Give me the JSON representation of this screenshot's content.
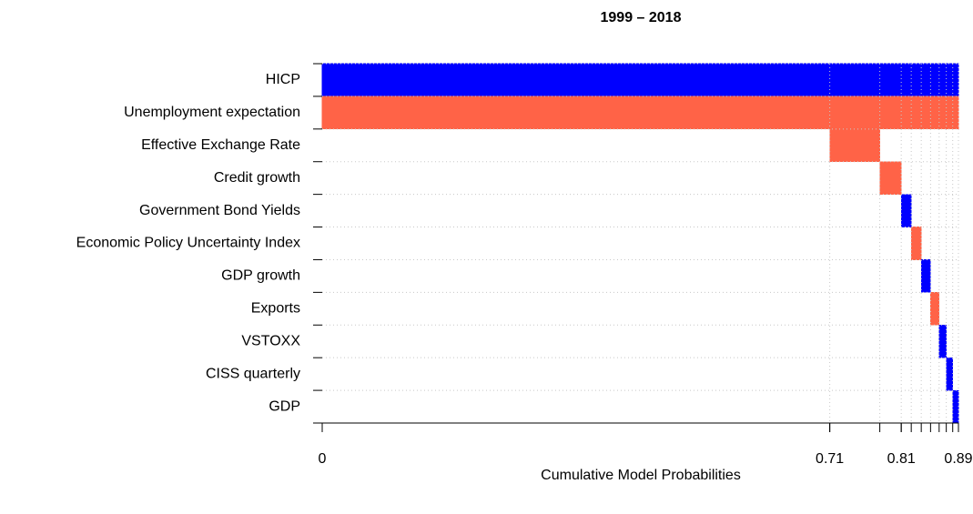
{
  "chart_data": {
    "type": "model-inclusion",
    "title": "1999 – 2018",
    "x_label": "Cumulative Model Probabilities",
    "variables": [
      "HICP",
      "Unemployment expectation",
      "Effective Exchange Rate",
      "Credit growth",
      "Government Bond Yields",
      "Economic Policy Uncertainty Index",
      "GDP growth",
      "Exports",
      "VSTOXX",
      "CISS quarterly",
      "GDP"
    ],
    "model_probs": [
      0.71,
      0.07,
      0.03,
      0.014,
      0.014,
      0.013,
      0.012,
      0.01,
      0.009,
      0.008
    ],
    "inclusion": [
      [
        1,
        1,
        1,
        1,
        1,
        1,
        1,
        1,
        1,
        1
      ],
      [
        -1,
        -1,
        -1,
        -1,
        -1,
        -1,
        -1,
        -1,
        -1,
        -1
      ],
      [
        0,
        -1,
        0,
        0,
        0,
        0,
        0,
        0,
        0,
        0
      ],
      [
        0,
        0,
        -1,
        0,
        0,
        0,
        0,
        0,
        0,
        0
      ],
      [
        0,
        0,
        0,
        1,
        0,
        0,
        0,
        0,
        0,
        0
      ],
      [
        0,
        0,
        0,
        0,
        -1,
        0,
        0,
        0,
        0,
        0
      ],
      [
        0,
        0,
        0,
        0,
        0,
        1,
        0,
        0,
        0,
        0
      ],
      [
        0,
        0,
        0,
        0,
        0,
        0,
        -1,
        0,
        0,
        0
      ],
      [
        0,
        0,
        0,
        0,
        0,
        0,
        0,
        1,
        0,
        0
      ],
      [
        0,
        0,
        0,
        0,
        0,
        0,
        0,
        0,
        1,
        0
      ],
      [
        0,
        0,
        0,
        0,
        0,
        0,
        0,
        0,
        0,
        1
      ]
    ],
    "positive_color": "#0000ff",
    "negative_color": "#ff6347",
    "xlim": [
      0,
      0.89
    ],
    "xticks": [
      0,
      0.71,
      0.81,
      0.89
    ],
    "grid": true
  }
}
